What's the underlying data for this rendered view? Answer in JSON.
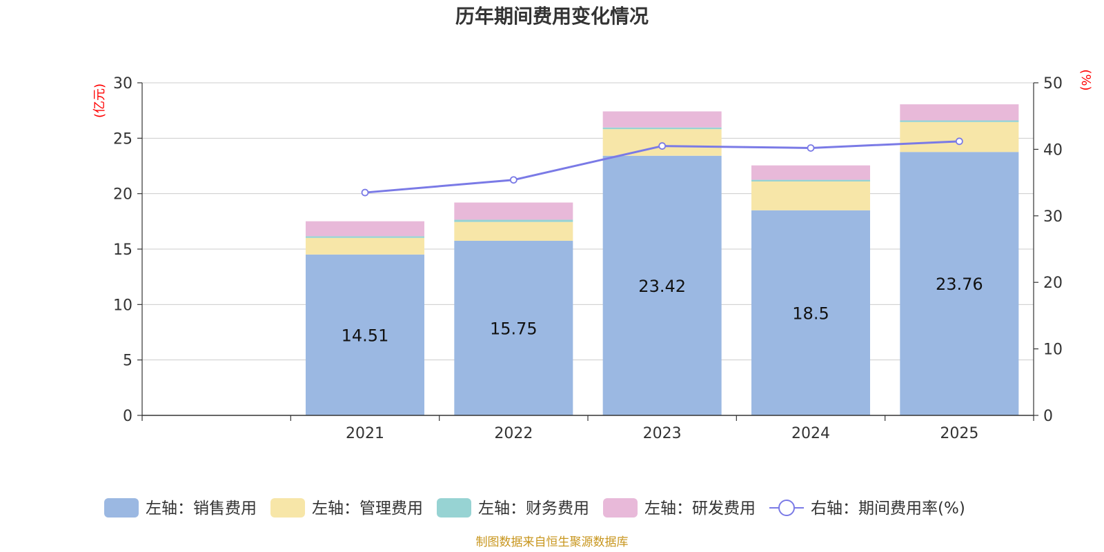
{
  "chart_data": {
    "type": "bar",
    "title": "历年期间费用变化情况",
    "categories": [
      "",
      "2021",
      "2022",
      "2023",
      "2024",
      "2025"
    ],
    "left_axis": {
      "label": "(亿元)",
      "ylim": [
        0,
        30
      ],
      "ticks": [
        0,
        5,
        10,
        15,
        20,
        25,
        30
      ]
    },
    "right_axis": {
      "label": "(%)",
      "ylim": [
        0,
        50
      ],
      "ticks": [
        0,
        10,
        20,
        30,
        40,
        50
      ]
    },
    "series": [
      {
        "name": "左轴：销售费用",
        "kind": "bar",
        "color": "#9bb8e2",
        "values": [
          null,
          14.51,
          15.75,
          23.42,
          18.5,
          23.76
        ],
        "show_labels": true
      },
      {
        "name": "左轴：管理费用",
        "kind": "bar",
        "color": "#f7e6a8",
        "values": [
          null,
          1.5,
          1.7,
          2.4,
          2.6,
          2.7
        ]
      },
      {
        "name": "左轴：财务费用",
        "kind": "bar",
        "color": "#97d3d3",
        "values": [
          null,
          0.15,
          0.2,
          0.15,
          0.15,
          0.15
        ]
      },
      {
        "name": "左轴：研发费用",
        "kind": "bar",
        "color": "#e8b9d9",
        "values": [
          null,
          1.35,
          1.55,
          1.45,
          1.3,
          1.45
        ]
      },
      {
        "name": "右轴：期间费用率(%)",
        "kind": "line",
        "axis": "right",
        "color": "#7a7ae6",
        "values": [
          null,
          33.5,
          35.4,
          40.5,
          40.2,
          41.2
        ]
      }
    ],
    "legend_position": "bottom",
    "grid": true
  },
  "footer": {
    "source": "制图数据来自恒生聚源数据库"
  }
}
